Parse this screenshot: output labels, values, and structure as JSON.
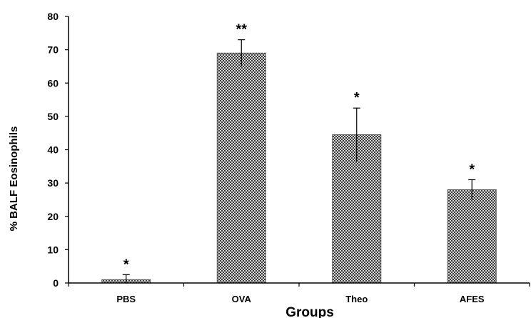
{
  "chart_data": {
    "type": "bar",
    "title": "",
    "xlabel": "Groups",
    "ylabel": "% BALF Eosinophils",
    "categories": [
      "PBS",
      "OVA",
      "Theo",
      "AFES"
    ],
    "values": [
      1,
      69,
      44.5,
      28
    ],
    "errors": [
      1.5,
      4,
      8,
      3
    ],
    "significance": [
      "*",
      "**",
      "*",
      "*"
    ],
    "ylim": [
      0,
      80
    ],
    "yticks": [
      0,
      10,
      20,
      30,
      40,
      50,
      60,
      70,
      80
    ],
    "grid": false,
    "legend": "none",
    "bar_fill_color": "#5a5a5a",
    "axis_color": "#000000"
  }
}
